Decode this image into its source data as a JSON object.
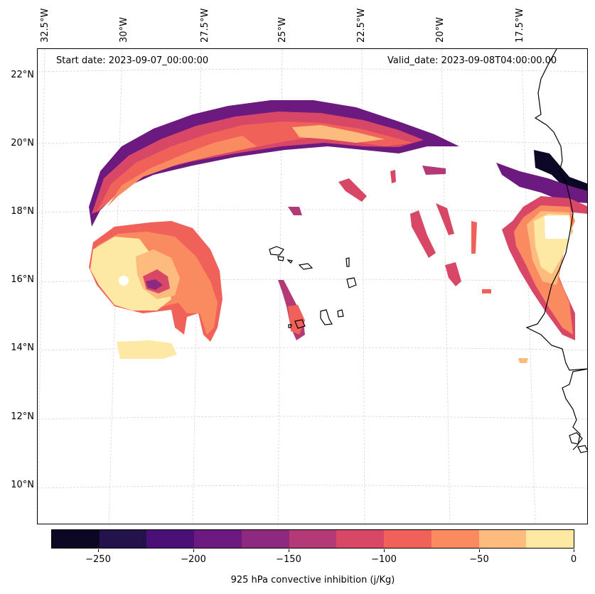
{
  "map": {
    "start_date": "Start date: 2023-09-07_00:00:00",
    "valid_date": "Valid_date: 2023-09-08T04:00:00.00",
    "longitude_labels": [
      "32.5°W",
      "30°W",
      "27.5°W",
      "25°W",
      "22.5°W",
      "20°W",
      "17.5°W"
    ],
    "latitude_labels": [
      "22°N",
      "20°N",
      "18°N",
      "16°N",
      "14°N",
      "12°N",
      "10°N"
    ],
    "coastline_color": "#000000",
    "gridline_color": "#cccccc"
  },
  "colorbar": {
    "title": "925 hPa convective inhibition (j/Kg)",
    "tick_labels": [
      "−250",
      "−200",
      "−150",
      "−100",
      "−50",
      "0"
    ],
    "tick_values": [
      -250,
      -200,
      -150,
      -100,
      -50,
      0
    ],
    "range": [
      -275,
      0
    ],
    "colors": [
      "#0b0724",
      "#24124a",
      "#4a1076",
      "#6c1a7f",
      "#8d2a7f",
      "#b33a76",
      "#d84765",
      "#f0615a",
      "#fa8b60",
      "#fdbb7e",
      "#fde9a4"
    ]
  }
}
